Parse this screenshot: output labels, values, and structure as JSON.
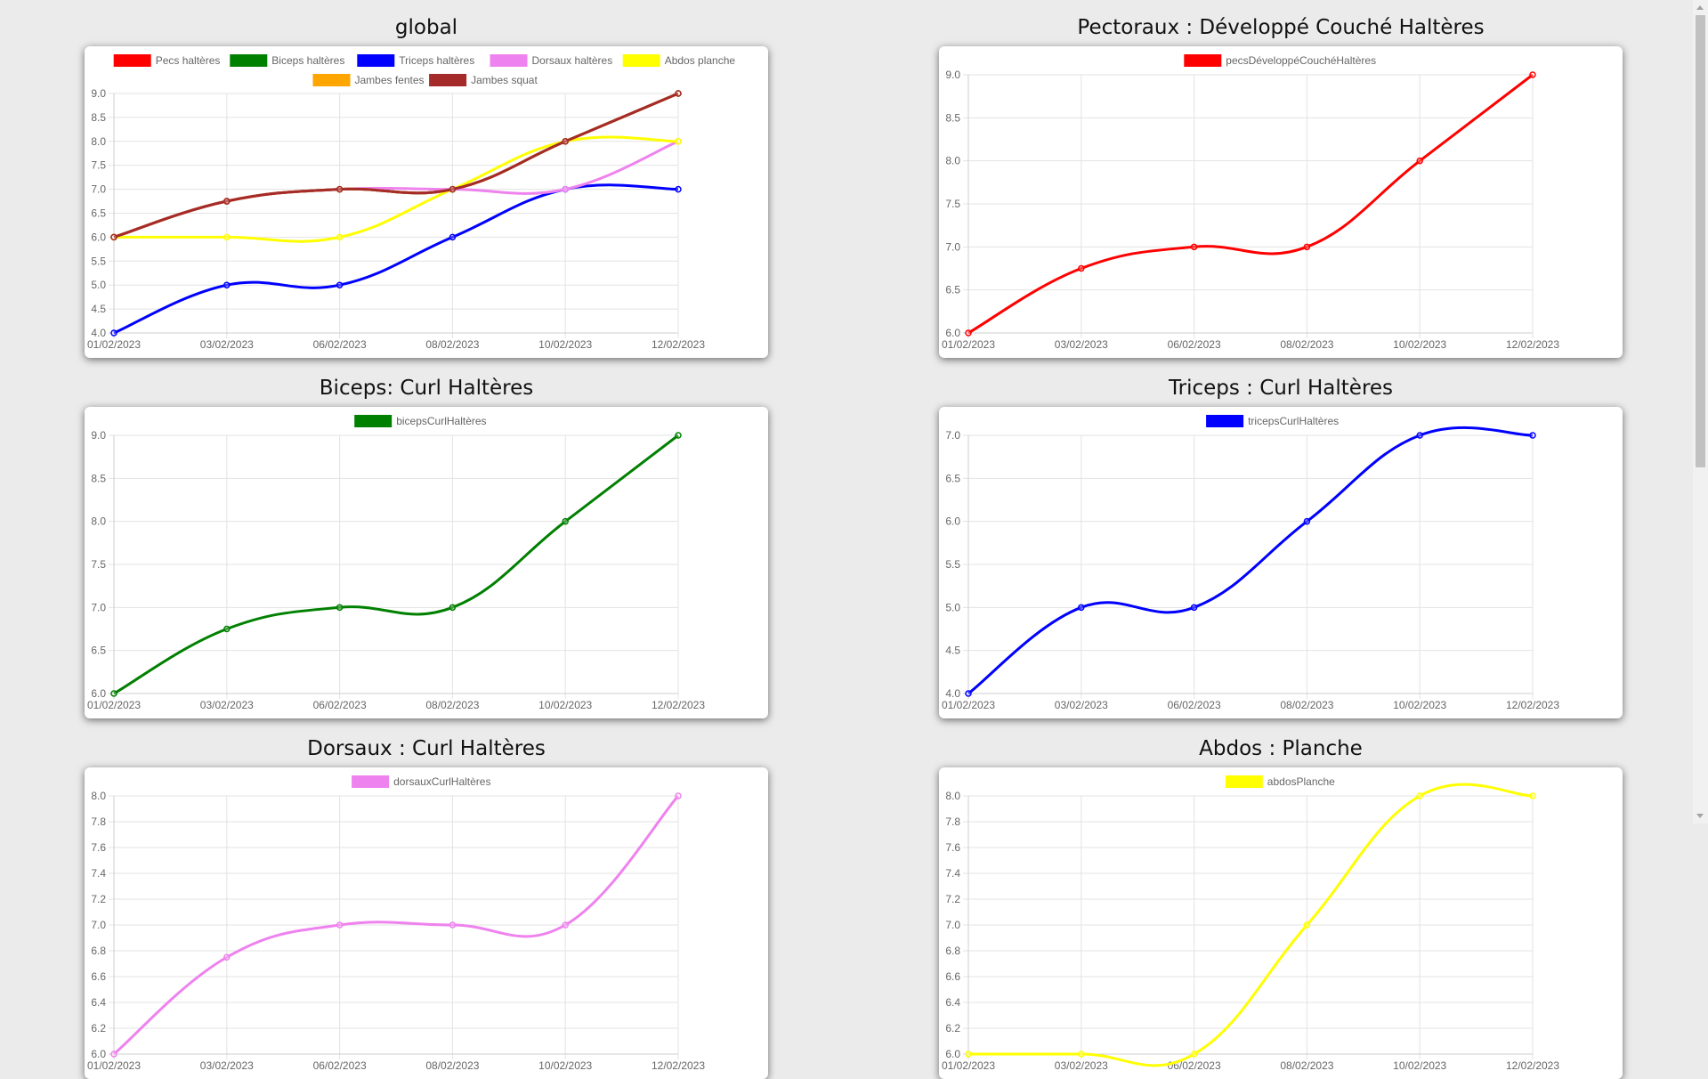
{
  "charts": [
    {
      "id": "global",
      "title": "global",
      "legend_rows": [
        [
          0,
          1,
          2,
          3,
          4
        ],
        [
          5,
          6
        ]
      ],
      "chart_data": {
        "type": "line",
        "categories": [
          "01/02/2023",
          "03/02/2023",
          "06/02/2023",
          "08/02/2023",
          "10/02/2023",
          "12/02/2023"
        ],
        "ylim": [
          4.0,
          9.0
        ],
        "yticks": [
          "4.0",
          "4.5",
          "5.0",
          "5.5",
          "6.0",
          "6.5",
          "7.0",
          "7.5",
          "8.0",
          "8.5",
          "9.0"
        ],
        "series": [
          {
            "name": "Pecs haltères",
            "color": "#ff0000",
            "values": [
              6,
              6.75,
              7,
              7,
              8,
              9
            ]
          },
          {
            "name": "Biceps haltères",
            "color": "#008000",
            "values": [
              6,
              6.75,
              7,
              7,
              8,
              9
            ]
          },
          {
            "name": "Triceps haltères",
            "color": "#0000ff",
            "values": [
              4,
              5,
              5,
              6,
              7,
              7
            ]
          },
          {
            "name": "Dorsaux haltères",
            "color": "#ee82ee",
            "values": [
              6,
              6.75,
              7,
              7,
              7,
              8
            ]
          },
          {
            "name": "Abdos planche",
            "color": "#ffff00",
            "values": [
              6,
              6,
              6,
              7,
              8,
              8
            ]
          },
          {
            "name": "Jambes fentes",
            "color": "#ffa500",
            "values": [
              6,
              6.75,
              7,
              7,
              8,
              9
            ]
          },
          {
            "name": "Jambes squat",
            "color": "#a52a2a",
            "values": [
              6,
              6.75,
              7,
              7,
              8,
              9
            ]
          }
        ]
      }
    },
    {
      "id": "pecs",
      "title": "Pectoraux : Développé Couché Haltères",
      "legend_rows": [
        [
          0
        ]
      ],
      "chart_data": {
        "type": "line",
        "categories": [
          "01/02/2023",
          "03/02/2023",
          "06/02/2023",
          "08/02/2023",
          "10/02/2023",
          "12/02/2023"
        ],
        "ylim": [
          6.0,
          9.0
        ],
        "yticks": [
          "6.0",
          "6.5",
          "7.0",
          "7.5",
          "8.0",
          "8.5",
          "9.0"
        ],
        "series": [
          {
            "name": "pecsDéveloppéCouchéHaltères",
            "color": "#ff0000",
            "values": [
              6,
              6.75,
              7,
              7,
              8,
              9
            ]
          }
        ]
      }
    },
    {
      "id": "biceps",
      "title": "Biceps: Curl Haltères",
      "legend_rows": [
        [
          0
        ]
      ],
      "chart_data": {
        "type": "line",
        "categories": [
          "01/02/2023",
          "03/02/2023",
          "06/02/2023",
          "08/02/2023",
          "10/02/2023",
          "12/02/2023"
        ],
        "ylim": [
          6.0,
          9.0
        ],
        "yticks": [
          "6.0",
          "6.5",
          "7.0",
          "7.5",
          "8.0",
          "8.5",
          "9.0"
        ],
        "series": [
          {
            "name": "bicepsCurlHaltères",
            "color": "#008000",
            "values": [
              6,
              6.75,
              7,
              7,
              8,
              9
            ]
          }
        ]
      }
    },
    {
      "id": "triceps",
      "title": "Triceps : Curl Haltères",
      "legend_rows": [
        [
          0
        ]
      ],
      "chart_data": {
        "type": "line",
        "categories": [
          "01/02/2023",
          "03/02/2023",
          "06/02/2023",
          "08/02/2023",
          "10/02/2023",
          "12/02/2023"
        ],
        "ylim": [
          4.0,
          7.0
        ],
        "yticks": [
          "4.0",
          "4.5",
          "5.0",
          "5.5",
          "6.0",
          "6.5",
          "7.0"
        ],
        "series": [
          {
            "name": "tricepsCurlHaltères",
            "color": "#0000ff",
            "values": [
              4,
              5,
              5,
              6,
              7,
              7
            ]
          }
        ]
      }
    },
    {
      "id": "dorsaux",
      "title": "Dorsaux : Curl Haltères",
      "legend_rows": [
        [
          0
        ]
      ],
      "chart_data": {
        "type": "line",
        "categories": [
          "01/02/2023",
          "03/02/2023",
          "06/02/2023",
          "08/02/2023",
          "10/02/2023",
          "12/02/2023"
        ],
        "ylim": [
          6.0,
          8.0
        ],
        "yticks": [
          "6.0",
          "6.2",
          "6.4",
          "6.6",
          "6.8",
          "7.0",
          "7.2",
          "7.4",
          "7.6",
          "7.8",
          "8.0"
        ],
        "series": [
          {
            "name": "dorsauxCurlHaltères",
            "color": "#ee82ee",
            "values": [
              6,
              6.75,
              7,
              7,
              7,
              8
            ]
          }
        ]
      }
    },
    {
      "id": "abdos",
      "title": "Abdos : Planche",
      "legend_rows": [
        [
          0
        ]
      ],
      "chart_data": {
        "type": "line",
        "categories": [
          "01/02/2023",
          "03/02/2023",
          "06/02/2023",
          "08/02/2023",
          "10/02/2023",
          "12/02/2023"
        ],
        "ylim": [
          6.0,
          8.0
        ],
        "yticks": [
          "6.0",
          "6.2",
          "6.4",
          "6.6",
          "6.8",
          "7.0",
          "7.2",
          "7.4",
          "7.6",
          "7.8",
          "8.0"
        ],
        "series": [
          {
            "name": "abdosPlanche",
            "color": "#ffff00",
            "values": [
              6,
              6,
              6,
              7,
              8,
              8
            ]
          }
        ]
      }
    }
  ]
}
